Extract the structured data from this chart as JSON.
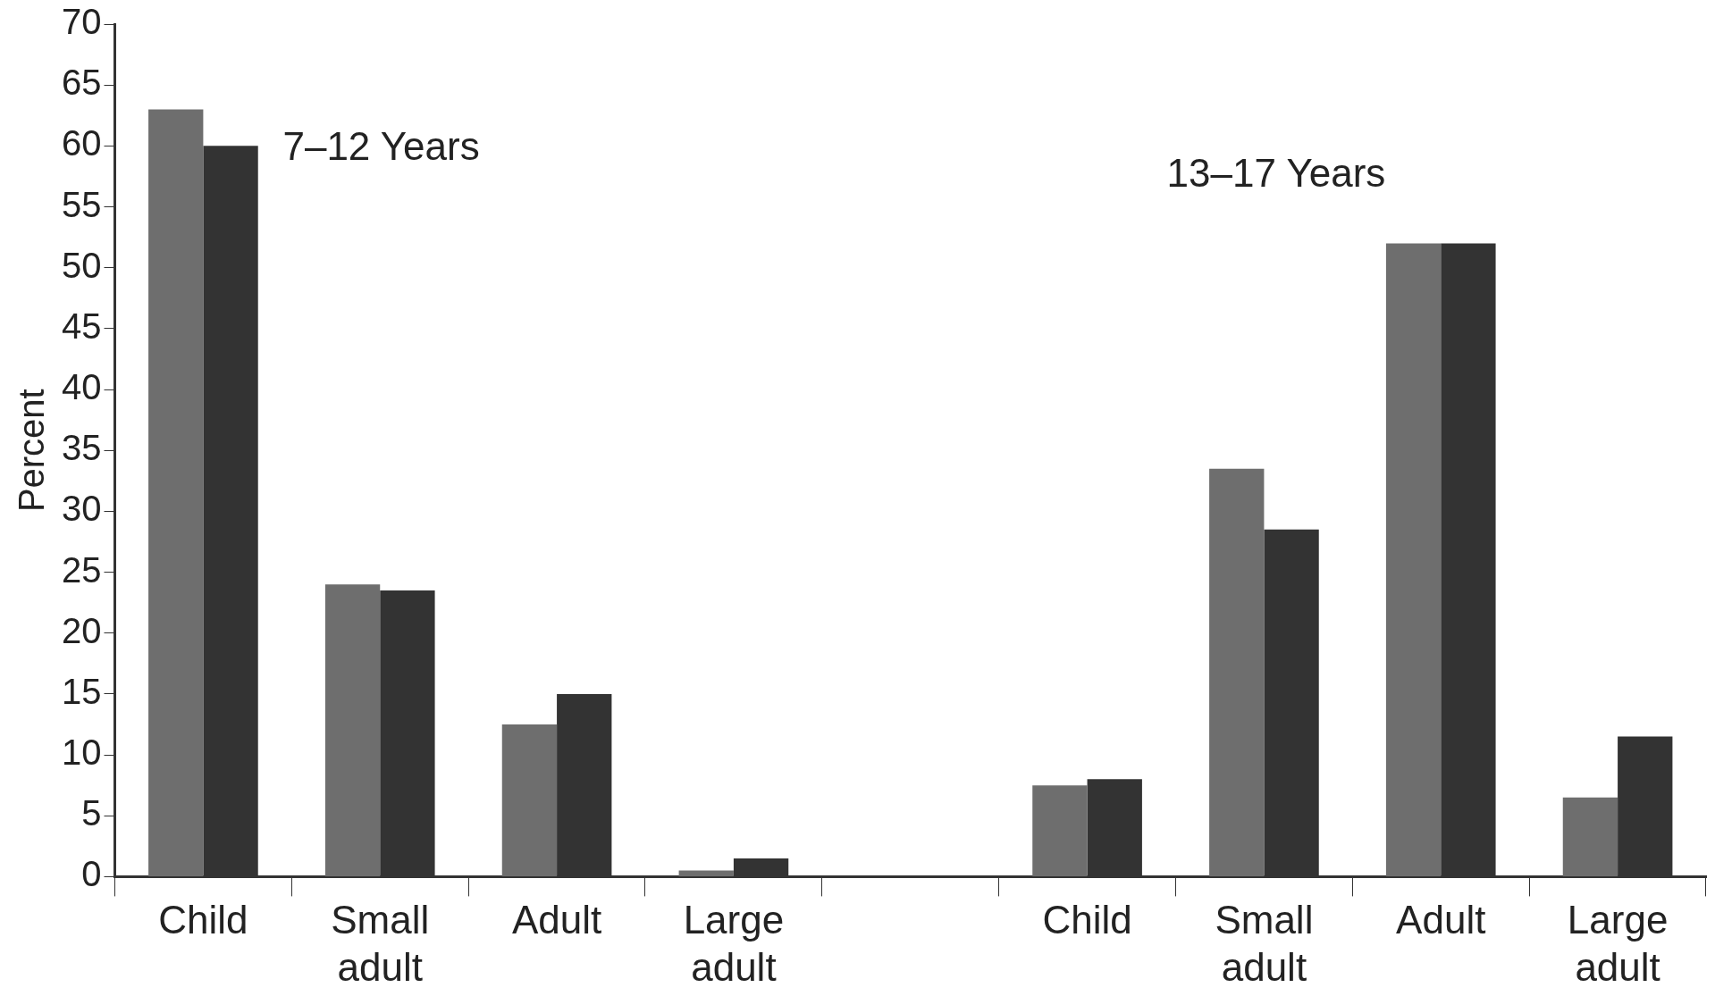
{
  "chart_data": {
    "type": "bar",
    "ylabel": "Percent",
    "categories": [
      "Child",
      "Small adult",
      "Adult",
      "Large adult",
      null,
      "Child",
      "Small adult",
      "Adult",
      "Large adult"
    ],
    "series": [
      {
        "color": "#6e6e6e",
        "values": [
          63,
          24,
          12.5,
          0.5,
          null,
          7.5,
          33.5,
          52,
          6.5
        ]
      },
      {
        "color": "#333333",
        "values": [
          60,
          23.5,
          15,
          1.5,
          null,
          8,
          28.5,
          52,
          11.5
        ]
      }
    ],
    "ylim": [
      0,
      70
    ],
    "yticks": [
      0,
      5,
      10,
      15,
      20,
      25,
      30,
      35,
      40,
      45,
      50,
      55,
      60,
      65,
      70
    ],
    "grid": false,
    "legend": false,
    "annotations": [
      "7–12 Years",
      "13–17 Years"
    ]
  }
}
